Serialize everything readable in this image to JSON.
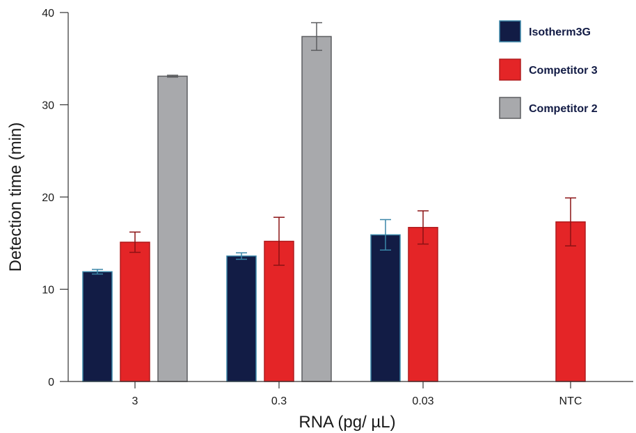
{
  "chart_data": {
    "type": "bar",
    "title": "",
    "xlabel": "RNA (pg/ µL)",
    "ylabel": "Detection time (min)",
    "categories": [
      "3",
      "0.3",
      "0.03",
      "NTC"
    ],
    "ylim": [
      0,
      40
    ],
    "yticks": [
      0,
      10,
      20,
      30,
      40
    ],
    "grid": false,
    "legend_position": "top-right",
    "series": [
      {
        "name": "Isotherm3G",
        "color": "#121c45",
        "edge_color": "#3a86a8",
        "error_color": "#3a86a8",
        "values": [
          11.9,
          13.6,
          15.9,
          null
        ],
        "errors": [
          0.25,
          0.35,
          1.65,
          null
        ]
      },
      {
        "name": "Competitor 3",
        "color": "#e42527",
        "edge_color": "#b01c1e",
        "error_color": "#8b1214",
        "values": [
          15.1,
          15.2,
          16.7,
          17.3
        ],
        "errors": [
          1.1,
          2.6,
          1.8,
          2.6
        ]
      },
      {
        "name": "Competitor 2",
        "color": "#a8a9ac",
        "edge_color": "#5c5d60",
        "error_color": "#5c5d60",
        "values": [
          33.1,
          37.4,
          null,
          null
        ],
        "errors": [
          0.1,
          1.5,
          null,
          null
        ]
      }
    ]
  }
}
